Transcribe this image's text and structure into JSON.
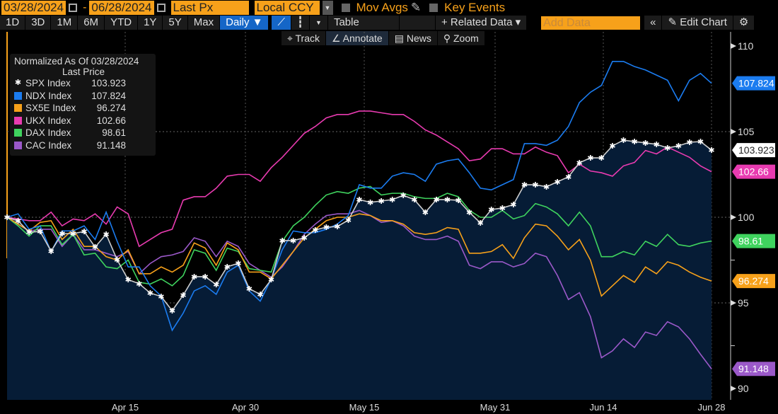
{
  "toolbar": {
    "start_date": "03/28/2024",
    "separator": "-",
    "end_date": "06/28/2024",
    "field": "Last Px",
    "currency": "Local CCY",
    "mov_avgs": "Mov Avgs",
    "key_events": "Key Events",
    "periods": [
      "1D",
      "3D",
      "1M",
      "6M",
      "YTD",
      "1Y",
      "5Y",
      "Max"
    ],
    "frequency": "Daily ▼",
    "table": "Table",
    "related_data": "+ Related Data ▾",
    "add_data_placeholder": "Add Data",
    "collapse": "«",
    "edit_chart": "✎ Edit Chart",
    "settings": "⚙",
    "tools": [
      "⌖ Track",
      "∠ Annotate",
      "▤ News",
      "⚲ Zoom"
    ]
  },
  "chart_data": {
    "type": "line",
    "title": "Normalized As Of 03/28/2024",
    "legend_header": "Last Price",
    "legend_placement": "top-left",
    "x_tick_labels": [
      "Apr 15",
      "Apr 30",
      "May 15",
      "May 31",
      "Jun 14",
      "Jun 28"
    ],
    "y_tick_labels": [
      "110",
      "105",
      "100",
      "95",
      "90"
    ],
    "ylim": [
      89.5,
      111
    ],
    "grid": true,
    "series": [
      {
        "name": "SPX Index",
        "last": "103.923",
        "color": "#ffffff",
        "area": true,
        "values": [
          100,
          99.79,
          99.13,
          99.17,
          98.02,
          99.05,
          99.05,
          99.17,
          98.26,
          99.01,
          97.52,
          96.36,
          96.12,
          95.58,
          95.37,
          94.55,
          95.45,
          96.53,
          96.53,
          96.07,
          97.11,
          97.31,
          95.83,
          95.5,
          96.36,
          98.64,
          98.64,
          98.8,
          99.26,
          99.42,
          99.46,
          99.83,
          101.03,
          100.87,
          100.95,
          101.03,
          101.28,
          101.03,
          100.29,
          101.03,
          101.03,
          100.99,
          100.29,
          99.67,
          100.45,
          100.54,
          100.74,
          101.9,
          101.9,
          101.78,
          102.07,
          102.36,
          103.18,
          103.47,
          103.47,
          104.17,
          104.5,
          104.42,
          104.34,
          104.26,
          104.05,
          104.17,
          104.38,
          104.42,
          103.923
        ]
      },
      {
        "name": "NDX Index",
        "last": "107.824",
        "color": "#1b7cf0",
        "values": [
          100,
          100.2,
          99.3,
          99.5,
          98,
          99.2,
          99.2,
          99.5,
          98.7,
          100.3,
          98.6,
          97.1,
          97.1,
          96,
          95.4,
          93.4,
          94.4,
          95.7,
          96,
          95.5,
          96.8,
          97.2,
          95.7,
          95.1,
          96.4,
          98.1,
          99.2,
          99.1,
          99.1,
          99.3,
          99.6,
          100.1,
          101.9,
          101.7,
          101.7,
          102.4,
          102.6,
          102.5,
          102.1,
          103.1,
          103.3,
          103.4,
          102.6,
          101.7,
          101.6,
          101.9,
          102.2,
          104.3,
          104.3,
          104.2,
          104.5,
          105.3,
          106.7,
          107.3,
          107.7,
          109.1,
          109.1,
          108.8,
          108.6,
          108.3,
          108,
          106.8,
          108,
          108.4,
          107.824
        ]
      },
      {
        "name": "SX5E Index",
        "last": "96.274",
        "color": "#f7a11a",
        "values": [
          100,
          99.6,
          99.2,
          99.7,
          99.8,
          98.7,
          99.3,
          98.3,
          98.3,
          97.7,
          97.5,
          98.1,
          96.7,
          96.7,
          97.1,
          96.8,
          97.2,
          98.5,
          98.2,
          97.2,
          98.5,
          98.1,
          96.8,
          96.8,
          96.4,
          97.2,
          98,
          98.8,
          99.3,
          99.8,
          100,
          100,
          100.2,
          100.1,
          99.8,
          99.8,
          99.6,
          99.1,
          99,
          99.1,
          99.4,
          99.3,
          97.9,
          97.9,
          98,
          98.4,
          97.6,
          98.8,
          99.6,
          99.5,
          98.9,
          98.1,
          98.7,
          97.5,
          95.4,
          96,
          96.6,
          96.2,
          97.1,
          96.7,
          97.4,
          97.2,
          96.8,
          96.5,
          96.274
        ]
      },
      {
        "name": "UKX Index",
        "last": "102.66",
        "color": "#e83bb0",
        "values": [
          100,
          99.9,
          99.8,
          99.8,
          100.3,
          99.5,
          99.9,
          99.8,
          100.2,
          99.6,
          100.6,
          100.2,
          98.3,
          98.7,
          99.1,
          99.3,
          101,
          101.2,
          101.2,
          101.7,
          102.4,
          102.5,
          102.5,
          102.1,
          102.9,
          103.5,
          104.2,
          104.9,
          105.3,
          105.8,
          106,
          106,
          106.2,
          106.2,
          106.1,
          106,
          106,
          105.6,
          105.1,
          104.8,
          104.4,
          104,
          103.3,
          103.4,
          104,
          104,
          103.7,
          103.7,
          104.1,
          103.8,
          103.6,
          102.6,
          103.1,
          102.7,
          102.6,
          102.4,
          103,
          103.2,
          103.9,
          103.7,
          104.1,
          103.8,
          103.5,
          103,
          102.66
        ]
      },
      {
        "name": "DAX Index",
        "last": "98.61",
        "color": "#3fd35e",
        "values": [
          100,
          99.5,
          98.9,
          99.5,
          99.5,
          98.4,
          99,
          97.8,
          97.9,
          97.1,
          97,
          97.5,
          96.2,
          96.1,
          96.4,
          96,
          96.6,
          98.1,
          97.9,
          96.9,
          98.2,
          98,
          97,
          96.9,
          96.8,
          98.6,
          99.5,
          100,
          100.7,
          101.3,
          101.5,
          101.4,
          101.7,
          101.8,
          101.3,
          101.4,
          101.4,
          101.2,
          101.1,
          101.1,
          101.4,
          101.2,
          100.4,
          100,
          100,
          100.4,
          99.9,
          100.1,
          100.8,
          100.6,
          100.2,
          99.5,
          100.3,
          99.5,
          97.7,
          97.7,
          98,
          97.8,
          98.6,
          98.3,
          99,
          98.4,
          98.3,
          98.5,
          98.61
        ]
      },
      {
        "name": "CAC Index",
        "last": "91.148",
        "color": "#9b59c9",
        "values": [
          100,
          99.6,
          99.2,
          99.3,
          99.3,
          98.3,
          99,
          98.1,
          98.1,
          97.9,
          97.7,
          98,
          96.7,
          97.3,
          97.7,
          97.8,
          98,
          98.8,
          98.6,
          97.7,
          98.6,
          98.3,
          97.3,
          96.9,
          96.5,
          97.1,
          98,
          99,
          99.6,
          100.1,
          100.2,
          100.2,
          100.4,
          100.1,
          99.7,
          99.8,
          99.5,
          98.9,
          98.7,
          98.7,
          98.9,
          98.6,
          97.2,
          97,
          97.4,
          97.4,
          97.1,
          97.3,
          97.9,
          97.7,
          96.6,
          95.2,
          95.6,
          94.2,
          91.8,
          92.2,
          92.9,
          92.4,
          93.3,
          93.1,
          93.9,
          93.6,
          92.9,
          92,
          91.148
        ]
      }
    ]
  }
}
